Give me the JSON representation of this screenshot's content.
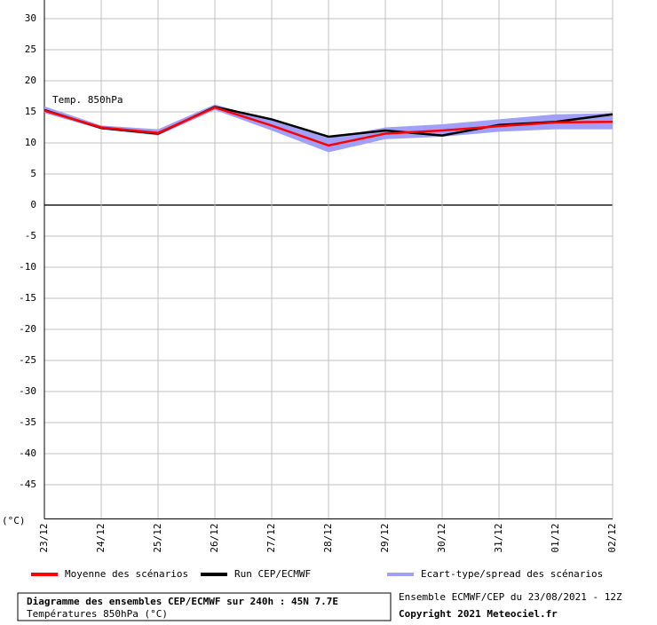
{
  "chart_data": {
    "type": "line",
    "annotation": "Temp. 850hPa",
    "y_label": "(°C)",
    "categories": [
      "23/12",
      "24/12",
      "25/12",
      "26/12",
      "27/12",
      "28/12",
      "29/12",
      "30/12",
      "31/12",
      "01/12",
      "02/12"
    ],
    "ylim": [
      -50.5,
      33
    ],
    "yticks": [
      30,
      25,
      20,
      15,
      10,
      5,
      0,
      -5,
      -10,
      -15,
      -20,
      -25,
      -30,
      -35,
      -40,
      -45
    ],
    "grid": true,
    "series": [
      {
        "name": "Moyenne des scénarios",
        "color": "#ff0000",
        "values": [
          15.2,
          12.5,
          11.6,
          15.7,
          12.8,
          9.6,
          11.5,
          12.0,
          12.7,
          13.3,
          13.4
        ]
      },
      {
        "name": "Run CEP/ECMWF",
        "color": "#000000",
        "values": [
          15.3,
          12.4,
          11.5,
          15.8,
          13.8,
          11.0,
          12.0,
          11.2,
          12.9,
          13.4,
          14.6
        ]
      },
      {
        "name": "Ecart-type/spread des scénarios",
        "color": "#a0a0f8",
        "low": [
          14.8,
          12.2,
          11.2,
          15.3,
          12.0,
          8.5,
          10.6,
          11.0,
          11.8,
          12.2,
          12.2
        ],
        "high": [
          15.9,
          12.8,
          12.2,
          16.2,
          13.6,
          10.8,
          12.5,
          13.0,
          13.8,
          14.6,
          14.8
        ]
      }
    ]
  },
  "footer": {
    "title": "Diagramme des ensembles CEP/ECMWF sur 240h : 45N 7.7E",
    "subtitle": "Températures 850hPa (°C)",
    "run": "Ensemble ECMWF/CEP du 23/08/2021 - 12Z",
    "copyright": "Copyright 2021 Meteociel.fr"
  }
}
